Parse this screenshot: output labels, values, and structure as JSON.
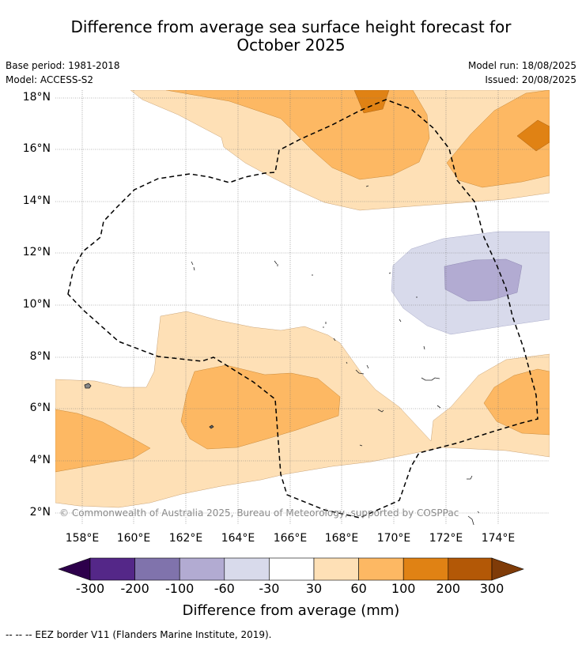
{
  "title_line1": "Difference from average sea surface height forecast for",
  "title_line2": "October 2025",
  "base_period": "Base period: 1981-2018",
  "model": "Model: ACCESS-S2",
  "model_run": "Model run: 18/08/2025",
  "issued": "Issued: 20/08/2025",
  "lat_ticks": [
    "18°N",
    "16°N",
    "14°N",
    "12°N",
    "10°N",
    "8°N",
    "6°N",
    "4°N",
    "2°N"
  ],
  "lon_ticks": [
    "158°E",
    "160°E",
    "162°E",
    "164°E",
    "166°E",
    "168°E",
    "170°E",
    "172°E",
    "174°E"
  ],
  "colorbar": {
    "labels": [
      "-300",
      "-200",
      "-100",
      "-60",
      "-30",
      "30",
      "60",
      "100",
      "200",
      "300"
    ],
    "colors": [
      "#2d004b",
      "#542788",
      "#8073ac",
      "#b2abd2",
      "#d8daeb",
      "#ffffff",
      "#fee0b6",
      "#fdb863",
      "#e08214",
      "#b35806",
      "#7f3b08"
    ],
    "title": "Difference from average (mm)"
  },
  "copyright": "© Commonwealth of Australia 2025, Bureau of Meteorology, supported by COSPPac",
  "footnote": "--  --  -- EEZ border V11 (Flanders Marine Institute, 2019)."
}
